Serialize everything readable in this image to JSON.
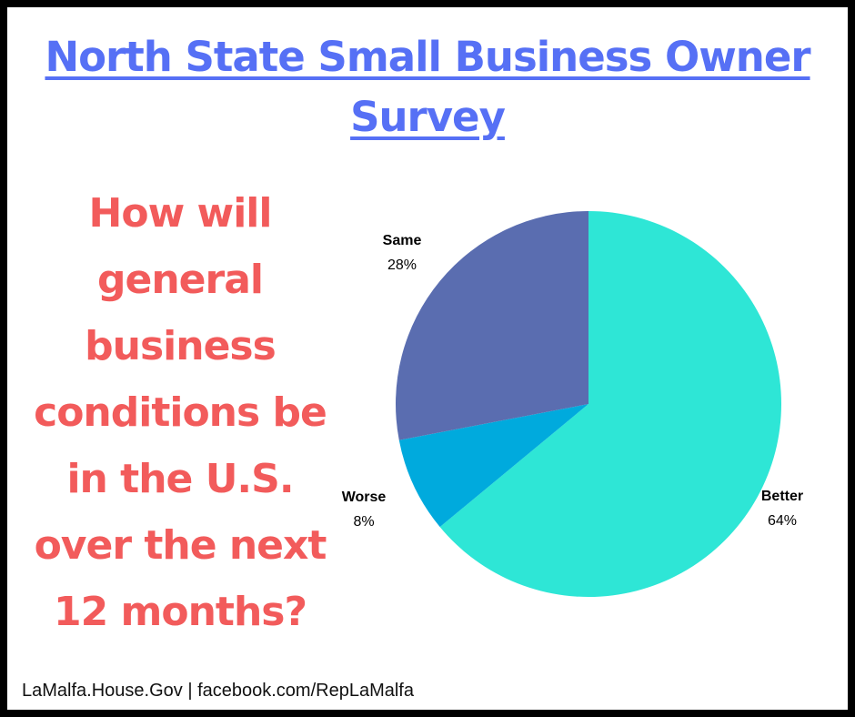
{
  "title": "North State Small Business Owner Survey",
  "question": "How will general business conditions be in the U.S. over the next 12 months?",
  "footer": "LaMalfa.House.Gov | facebook.com/RepLaMalfa",
  "chart_data": {
    "type": "pie",
    "slices": [
      {
        "label": "Better",
        "value": 64,
        "value_label": "64%",
        "color": "#2ee6d6"
      },
      {
        "label": "Worse",
        "value": 8,
        "value_label": "8%",
        "color": "#00aadd"
      },
      {
        "label": "Same",
        "value": 28,
        "value_label": "28%",
        "color": "#5a6db0"
      }
    ],
    "start": "12 o'clock",
    "direction": "clockwise",
    "legend": "none"
  }
}
